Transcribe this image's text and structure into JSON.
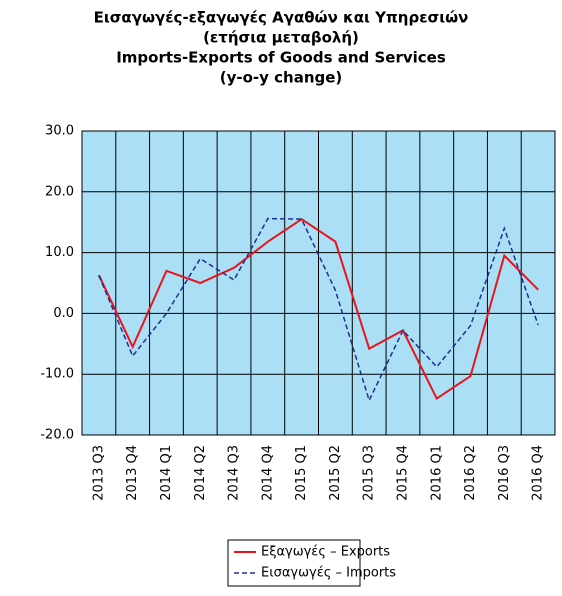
{
  "chart_data": {
    "type": "line",
    "title": [
      "Εισαγωγές-εξαγωγές Αγαθών και Υπηρεσιών",
      "(ετήσια μεταβολή)",
      "Imports-Exports of Goods and Services",
      "(y-o-y change)"
    ],
    "categories": [
      "2013 Q3",
      "2013 Q4",
      "2014 Q1",
      "2014 Q2",
      "2014 Q3",
      "2014 Q4",
      "2015 Q1",
      "2015 Q2",
      "2015 Q3",
      "2015 Q4",
      "2016 Q1",
      "2016 Q2",
      "2016 Q3",
      "2016 Q4"
    ],
    "series": [
      {
        "name": "Εξαγωγές – Exports",
        "color": "#e8141c",
        "dash": false,
        "values": [
          6.3,
          -5.5,
          7.0,
          5.0,
          7.5,
          11.8,
          15.5,
          11.8,
          -5.8,
          -2.8,
          -14.0,
          -10.3,
          9.5,
          3.9
        ]
      },
      {
        "name": "Εισαγωγές – Imports",
        "color": "#1f2f8f",
        "dash": true,
        "values": [
          6.2,
          -7.0,
          0.0,
          9.0,
          5.5,
          15.6,
          15.5,
          3.8,
          -14.3,
          -2.8,
          -8.8,
          -2.0,
          14.0,
          -1.9
        ]
      }
    ],
    "ylim": [
      -20,
      30
    ],
    "yticks": [
      {
        "value": -20,
        "label": "-20.0"
      },
      {
        "value": -10,
        "label": "-10.0"
      },
      {
        "value": 0,
        "label": "0.0"
      },
      {
        "value": 10,
        "label": "10.0"
      },
      {
        "value": 20,
        "label": "20.0"
      },
      {
        "value": 30,
        "label": "30.0"
      }
    ],
    "grid": true,
    "plot_background": "#abdff6",
    "legend": "bottom"
  }
}
